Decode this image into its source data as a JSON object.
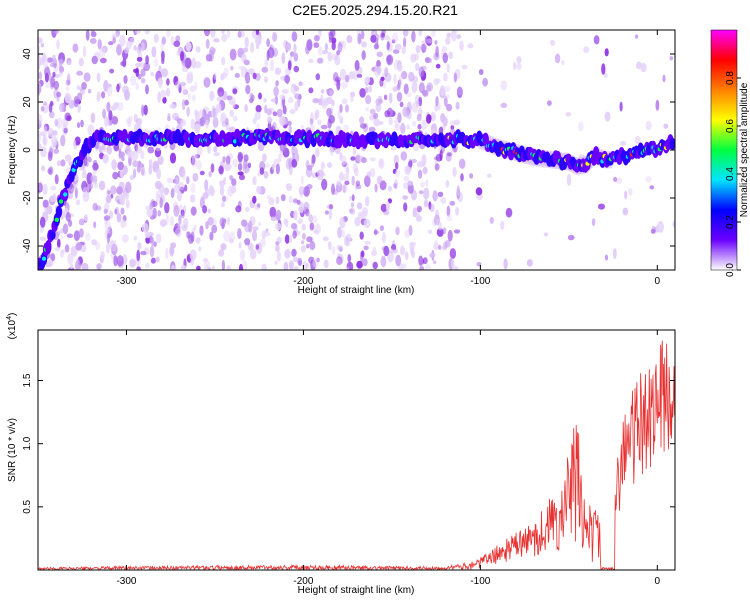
{
  "title": "C2E5.2025.294.15.20.R21",
  "colors": {
    "snr_line": "#e83030",
    "spectrogram_base": "#8a2be2",
    "colormap": [
      "#ffffff",
      "#6a00ff",
      "#0000ff",
      "#00e5ff",
      "#00ff40",
      "#ffff00",
      "#ff8000",
      "#ff0000",
      "#ff00ff"
    ]
  },
  "chart_data": [
    {
      "type": "heatmap",
      "name": "spectrogram",
      "xlabel": "Height of straight line (km)",
      "ylabel": "Frequency (Hz)",
      "xlim": [
        -350,
        10
      ],
      "ylim": [
        -50,
        50
      ],
      "xticks": [
        -300,
        -200,
        -100,
        0
      ],
      "xtick_labels": [
        "-300",
        "-200",
        "-100",
        "0"
      ],
      "yticks": [
        -40,
        -20,
        0,
        20,
        40
      ],
      "ytick_labels": [
        "-40",
        "-20",
        "0",
        "20",
        "40"
      ],
      "ridge": {
        "x": [
          -350,
          -345,
          -340,
          -335,
          -330,
          -325,
          -320,
          -315,
          -300,
          -250,
          -200,
          -150,
          -120,
          -100,
          -90,
          -80,
          -70,
          -60,
          -50,
          -45,
          -40,
          -35,
          -30,
          -25,
          -20,
          -15,
          -10,
          0,
          10
        ],
        "y": [
          -50,
          -42,
          -30,
          -18,
          -9,
          -2,
          4,
          6,
          5,
          5,
          5,
          4,
          5,
          4,
          1,
          -1,
          -3,
          -4,
          -5,
          -7,
          -6,
          -2,
          -4,
          -4,
          -3,
          -2,
          -1,
          1,
          3
        ]
      },
      "colorbar": {
        "label": "Normalized spectral amplitude",
        "range": [
          0.0,
          1.0
        ],
        "ticks": [
          0.0,
          0.2,
          0.4,
          0.6,
          0.8
        ],
        "tick_labels": [
          "0.0",
          "0.2",
          "0.4",
          "0.6",
          "0.8"
        ]
      }
    },
    {
      "type": "line",
      "name": "snr",
      "xlabel": "Height of straight line (km)",
      "ylabel": "SNR (10 * v/v)",
      "multiplier_label": "(x10",
      "multiplier_exponent": "4",
      "multiplier_close": ")",
      "xlim": [
        -350,
        10
      ],
      "ylim": [
        0,
        1.9
      ],
      "xticks": [
        -300,
        -200,
        -100,
        0
      ],
      "xtick_labels": [
        "-300",
        "-200",
        "-100",
        "0"
      ],
      "yticks": [
        0.5,
        1.0,
        1.5
      ],
      "ytick_labels": [
        "0.5",
        "1.0",
        "1.5"
      ],
      "series": [
        {
          "name": "SNR",
          "envelope_x": [
            -350,
            -300,
            -200,
            -150,
            -120,
            -110,
            -100,
            -90,
            -80,
            -70,
            -60,
            -55,
            -50,
            -45,
            -40,
            -35,
            -30,
            -25,
            -20,
            -15,
            -10,
            -5,
            0,
            5,
            10
          ],
          "envelope_low": [
            0.0,
            0.0,
            0.0,
            0.0,
            0.0,
            0.0,
            0.01,
            0.05,
            0.08,
            0.1,
            0.12,
            0.15,
            0.2,
            0.1,
            0.05,
            0.05,
            0.1,
            0.35,
            0.5,
            0.6,
            0.7,
            0.75,
            0.85,
            0.9,
            1.0
          ],
          "envelope_high": [
            0.02,
            0.03,
            0.04,
            0.03,
            0.03,
            0.05,
            0.1,
            0.2,
            0.3,
            0.38,
            0.6,
            0.55,
            1.0,
            1.25,
            0.55,
            0.5,
            0.4,
            0.85,
            1.2,
            1.45,
            1.55,
            1.7,
            1.8,
            1.85,
            1.85
          ]
        }
      ]
    }
  ]
}
